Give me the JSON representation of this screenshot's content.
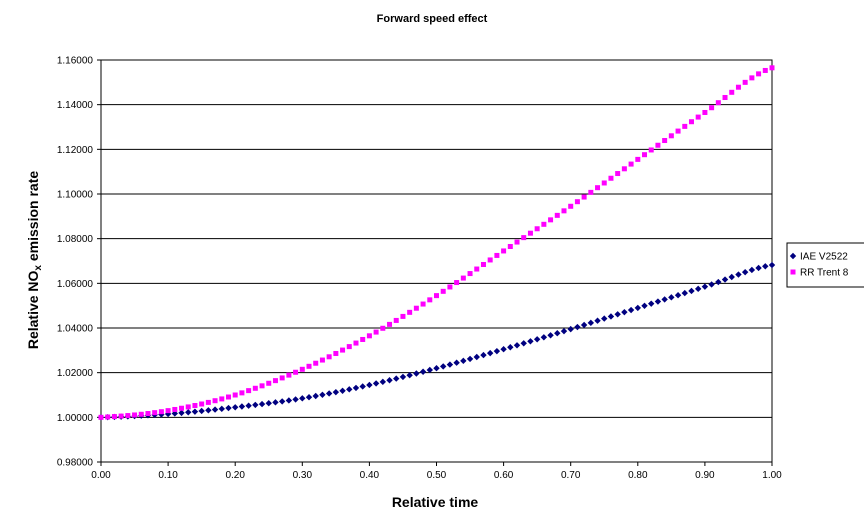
{
  "chart_data": {
    "type": "scatter",
    "title": "Forward speed effect",
    "xlabel": "Relative time",
    "ylabel_main": "Relative NO",
    "ylabel_sub": "x",
    "ylabel_rest": " emission rate",
    "xlim": [
      0,
      1
    ],
    "ylim": [
      0.98,
      1.16
    ],
    "x_ticks": [
      "0.00",
      "0.10",
      "0.20",
      "0.30",
      "0.40",
      "0.50",
      "0.60",
      "0.70",
      "0.80",
      "0.90",
      "1.00"
    ],
    "y_ticks": [
      "0.98000",
      "1.00000",
      "1.02000",
      "1.04000",
      "1.06000",
      "1.08000",
      "1.10000",
      "1.12000",
      "1.14000",
      "1.16000"
    ],
    "grid": "horizontal",
    "legend_position": "right",
    "series": [
      {
        "name": "IAE V2522",
        "color": "#000080",
        "marker": "diamond",
        "x": [
          0.0,
          0.1,
          0.2,
          0.3,
          0.4,
          0.5,
          0.6,
          0.7,
          0.8,
          0.9,
          1.0
        ],
        "y": [
          1.0,
          1.0015,
          1.0045,
          1.0085,
          1.0145,
          1.022,
          1.0305,
          1.0395,
          1.049,
          1.0585,
          1.0682
        ]
      },
      {
        "name": "RR Trent 8",
        "color": "#FF00FF",
        "marker": "square",
        "x": [
          0.0,
          0.1,
          0.2,
          0.3,
          0.4,
          0.5,
          0.6,
          0.7,
          0.8,
          0.9,
          1.0
        ],
        "y": [
          1.0,
          1.003,
          1.01,
          1.0215,
          1.0365,
          1.0545,
          1.0745,
          1.0945,
          1.1155,
          1.1365,
          1.1565
        ]
      }
    ]
  }
}
